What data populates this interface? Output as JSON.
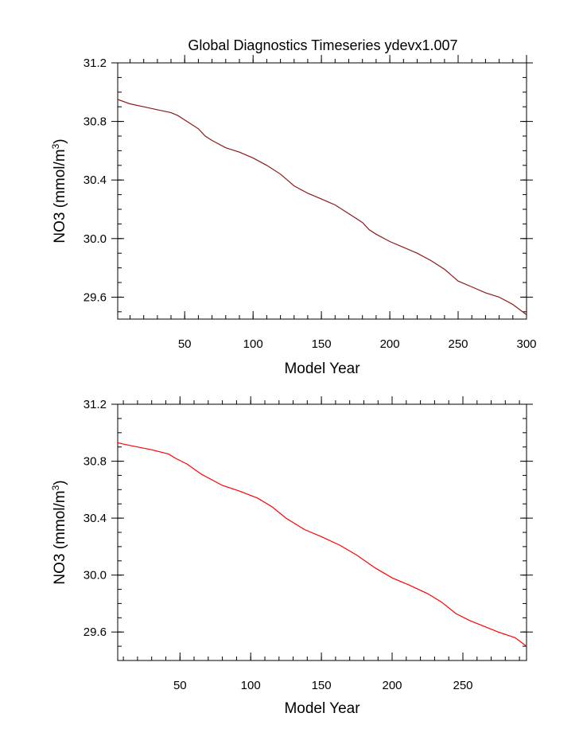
{
  "title": "Global Diagnostics Timeseries ydevx1.007",
  "chart_data": [
    {
      "type": "line",
      "xlabel": "Model Year",
      "ylabel_main": "NO3 (mmol/m",
      "ylabel_sup": "3",
      "ylabel_close": ")",
      "xlim": [
        1,
        300
      ],
      "ylim": [
        29.45,
        31.2
      ],
      "xticks": [
        50,
        100,
        150,
        200,
        250,
        300
      ],
      "xtick_labels": [
        "50",
        "100",
        "150",
        "200",
        "250",
        "300"
      ],
      "yticks": [
        29.6,
        30.0,
        30.4,
        30.8,
        31.2
      ],
      "ytick_labels": [
        "29.6",
        "30.0",
        "30.4",
        "30.8",
        "31.2"
      ],
      "series": [
        {
          "color": "#8b1a1a",
          "x": [
            1,
            10,
            20,
            30,
            40,
            45,
            50,
            55,
            60,
            65,
            70,
            80,
            90,
            100,
            110,
            120,
            125,
            130,
            140,
            150,
            160,
            170,
            180,
            185,
            190,
            200,
            210,
            220,
            230,
            240,
            245,
            250,
            260,
            270,
            280,
            290,
            300
          ],
          "y": [
            30.95,
            30.92,
            30.9,
            30.88,
            30.86,
            30.84,
            30.81,
            30.78,
            30.75,
            30.7,
            30.67,
            30.62,
            30.59,
            30.55,
            30.5,
            30.44,
            30.4,
            30.36,
            30.31,
            30.27,
            30.23,
            30.17,
            30.11,
            30.06,
            30.03,
            29.98,
            29.94,
            29.9,
            29.85,
            29.79,
            29.75,
            29.71,
            29.67,
            29.63,
            29.6,
            29.55,
            29.48
          ]
        }
      ]
    },
    {
      "type": "line",
      "xlabel": "Model Year",
      "ylabel_main": "NO3 (mmol/m",
      "ylabel_sup": "3",
      "ylabel_close": ")",
      "xlim": [
        6,
        295
      ],
      "ylim": [
        29.4,
        31.2
      ],
      "xticks": [
        50,
        100,
        150,
        200,
        250
      ],
      "xtick_labels": [
        "50",
        "100",
        "150",
        "200",
        "250"
      ],
      "yticks": [
        29.6,
        30.0,
        30.4,
        30.8,
        31.2
      ],
      "ytick_labels": [
        "29.6",
        "30.0",
        "30.4",
        "30.8",
        "31.2"
      ],
      "series": [
        {
          "color": "#ff0000",
          "x": [
            6,
            10,
            20,
            30,
            42,
            47,
            55,
            65,
            80,
            92,
            105,
            115,
            125,
            138,
            150,
            163,
            175,
            188,
            200,
            212,
            225,
            235,
            245,
            255,
            265,
            275,
            287,
            295
          ],
          "y": [
            30.93,
            30.92,
            30.9,
            30.88,
            30.85,
            30.82,
            30.78,
            30.71,
            30.63,
            30.59,
            30.54,
            30.48,
            30.4,
            30.32,
            30.27,
            30.21,
            30.14,
            30.05,
            29.98,
            29.93,
            29.87,
            29.81,
            29.73,
            29.68,
            29.64,
            29.6,
            29.56,
            29.5
          ]
        }
      ]
    }
  ]
}
